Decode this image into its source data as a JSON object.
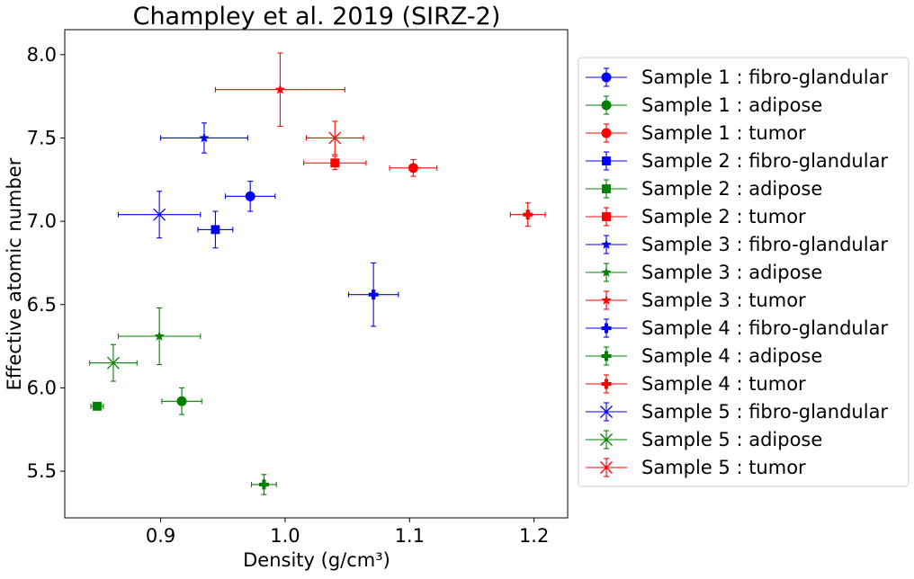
{
  "chart_data": {
    "type": "scatter",
    "title": "Champley et al. 2019 (SIRZ-2)",
    "xlabel": "Density (g/cm³)",
    "ylabel": "Effective atomic number",
    "xlim": [
      0.823,
      1.227
    ],
    "ylim": [
      5.22,
      8.15
    ],
    "xticks": [
      "0.9",
      "1.0",
      "1.1",
      "1.2"
    ],
    "xtick_values": [
      0.9,
      1.0,
      1.1,
      1.2
    ],
    "yticks": [
      "5.5",
      "6.0",
      "6.5",
      "7.0",
      "7.5",
      "8.0"
    ],
    "ytick_values": [
      5.5,
      6.0,
      6.5,
      7.0,
      7.5,
      8.0
    ],
    "grid": false,
    "legend_position": "outside-right",
    "colors": {
      "fibro-glandular": "#0000ff",
      "adipose": "#008000",
      "tumor": "#ff0000"
    },
    "series": [
      {
        "name": "Sample 1 : fibro-glandular",
        "color": "#0000ff",
        "marker": "circle",
        "x": 0.972,
        "y": 7.15,
        "xerr": 0.02,
        "yerr": 0.09
      },
      {
        "name": "Sample 1 : adipose",
        "color": "#008000",
        "marker": "circle",
        "x": 0.917,
        "y": 5.92,
        "xerr": 0.016,
        "yerr": 0.08
      },
      {
        "name": "Sample 1 : tumor",
        "color": "#ff0000",
        "marker": "circle",
        "x": 1.103,
        "y": 7.32,
        "xerr": 0.019,
        "yerr": 0.05
      },
      {
        "name": "Sample 2 : fibro-glandular",
        "color": "#0000ff",
        "marker": "square",
        "x": 0.944,
        "y": 6.95,
        "xerr": 0.014,
        "yerr": 0.11
      },
      {
        "name": "Sample 2 : adipose",
        "color": "#008000",
        "marker": "square",
        "x": 0.849,
        "y": 5.89,
        "xerr": 0.005,
        "yerr": 0.02
      },
      {
        "name": "Sample 2 : tumor",
        "color": "#ff0000",
        "marker": "square",
        "x": 1.04,
        "y": 7.35,
        "xerr": 0.025,
        "yerr": 0.04
      },
      {
        "name": "Sample 3 : fibro-glandular",
        "color": "#0000ff",
        "marker": "star",
        "x": 0.935,
        "y": 7.5,
        "xerr": 0.035,
        "yerr": 0.09
      },
      {
        "name": "Sample 3 : adipose",
        "color": "#008000",
        "marker": "star",
        "x": 0.899,
        "y": 6.31,
        "xerr": 0.033,
        "yerr": 0.17
      },
      {
        "name": "Sample 3 : tumor",
        "color": "#ff0000",
        "marker": "star",
        "x": 0.996,
        "y": 7.79,
        "xerr": 0.052,
        "yerr": 0.22
      },
      {
        "name": "Sample 4 : fibro-glandular",
        "color": "#0000ff",
        "marker": "plus",
        "x": 1.071,
        "y": 6.56,
        "xerr": 0.02,
        "yerr": 0.19
      },
      {
        "name": "Sample 4 : adipose",
        "color": "#008000",
        "marker": "plus",
        "x": 0.983,
        "y": 5.42,
        "xerr": 0.01,
        "yerr": 0.06
      },
      {
        "name": "Sample 4 : tumor",
        "color": "#ff0000",
        "marker": "plus",
        "x": 1.195,
        "y": 7.04,
        "xerr": 0.014,
        "yerr": 0.07
      },
      {
        "name": "Sample 5 : fibro-glandular",
        "color": "#0000ff",
        "marker": "x",
        "x": 0.899,
        "y": 7.04,
        "xerr": 0.033,
        "yerr": 0.14
      },
      {
        "name": "Sample 5 : adipose",
        "color": "#008000",
        "marker": "x",
        "x": 0.862,
        "y": 6.15,
        "xerr": 0.019,
        "yerr": 0.11
      },
      {
        "name": "Sample 5 : tumor",
        "color": "#ff0000",
        "marker": "x",
        "x": 1.04,
        "y": 7.5,
        "xerr": 0.023,
        "yerr": 0.1
      }
    ]
  }
}
